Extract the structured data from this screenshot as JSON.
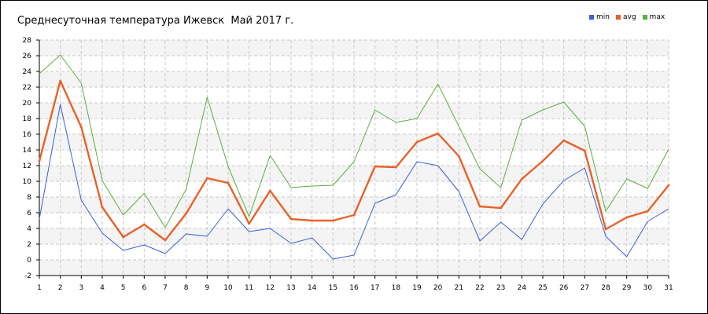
{
  "chart_data": {
    "type": "line",
    "title": "Среднесуточная температура Ижевск  Май 2017 г.",
    "xlabel": "",
    "ylabel": "",
    "x": [
      1,
      2,
      3,
      4,
      5,
      6,
      7,
      8,
      9,
      10,
      11,
      12,
      13,
      14,
      15,
      16,
      17,
      18,
      19,
      20,
      21,
      22,
      23,
      24,
      25,
      26,
      27,
      28,
      29,
      30,
      31
    ],
    "ylim": [
      -2,
      28
    ],
    "yticks": [
      -2,
      0,
      2,
      4,
      6,
      8,
      10,
      12,
      14,
      16,
      18,
      20,
      22,
      24,
      26,
      28
    ],
    "xlim": [
      1,
      31
    ],
    "grid": true,
    "legend_position": "top-right",
    "series": [
      {
        "name": "min",
        "color": "#3a5fd8",
        "values": [
          5.2,
          19.8,
          7.6,
          3.4,
          1.2,
          1.9,
          0.8,
          3.3,
          3.0,
          6.5,
          3.6,
          4.0,
          2.1,
          2.8,
          0.1,
          0.6,
          7.2,
          8.3,
          12.5,
          12.0,
          8.7,
          2.4,
          4.8,
          2.6,
          7.1,
          10.1,
          11.7,
          3.0,
          0.4,
          4.9,
          6.5
        ]
      },
      {
        "name": "avg",
        "color": "#e8622a",
        "values": [
          12.6,
          22.8,
          16.9,
          6.7,
          2.9,
          4.5,
          2.5,
          5.9,
          10.4,
          9.8,
          4.6,
          8.8,
          5.2,
          5.0,
          5.0,
          5.7,
          11.9,
          11.8,
          15.0,
          16.1,
          13.2,
          6.8,
          6.6,
          10.3,
          12.6,
          15.2,
          13.9,
          3.9,
          5.4,
          6.2,
          9.5
        ]
      },
      {
        "name": "max",
        "color": "#5ab040",
        "values": [
          23.7,
          26.1,
          22.5,
          10.1,
          5.7,
          8.5,
          4.1,
          9.0,
          20.7,
          11.9,
          5.5,
          13.3,
          9.2,
          9.4,
          9.5,
          12.5,
          19.1,
          17.5,
          18.0,
          22.4,
          17.0,
          11.6,
          9.2,
          17.8,
          19.1,
          20.1,
          17.0,
          6.2,
          10.3,
          9.1,
          14.1
        ]
      }
    ]
  }
}
